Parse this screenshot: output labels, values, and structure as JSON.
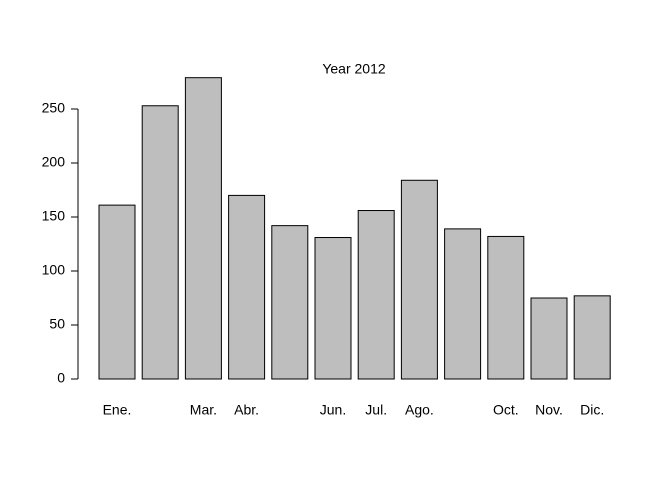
{
  "chart_data": {
    "type": "bar",
    "title": "Year 2012",
    "categories": [
      "Ene.",
      null,
      "Mar.",
      "Abr.",
      null,
      "Jun.",
      "Jul.",
      "Ago.",
      null,
      "Oct.",
      "Nov.",
      "Dic."
    ],
    "values": [
      161,
      253,
      279,
      170,
      142,
      131,
      156,
      184,
      139,
      132,
      75,
      77
    ],
    "color": "#bebebe",
    "ylim": [
      0,
      290
    ],
    "yticks": [
      0,
      50,
      100,
      150,
      200,
      250
    ],
    "grid": false
  }
}
